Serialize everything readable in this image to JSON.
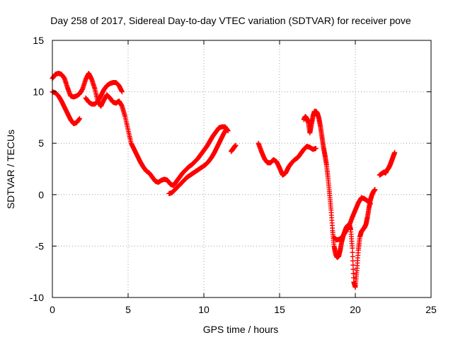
{
  "chart_data": {
    "type": "scatter",
    "title": "Day 258 of 2017, Sidereal Day-to-day VTEC variation (SDTVAR) for receiver pove",
    "xlabel": "GPS time / hours",
    "ylabel": "SDTVAR / TECUs",
    "xlim": [
      0,
      25
    ],
    "ylim": [
      -10,
      15
    ],
    "xticks": [
      "0",
      "5",
      "10",
      "15",
      "20",
      "25"
    ],
    "yticks": [
      "-10",
      "-5",
      "0",
      "5",
      "10",
      "15"
    ],
    "grid": true,
    "legend": "none",
    "marker": "+",
    "color": "#ff0000",
    "series": [
      {
        "x": [
          0.0,
          0.2,
          0.4,
          0.6,
          0.8,
          1.0,
          1.2,
          1.4,
          1.6,
          1.8
        ],
        "y": [
          10.0,
          9.9,
          9.6,
          9.1,
          8.5,
          7.9,
          7.3,
          6.9,
          7.0,
          7.4
        ]
      },
      {
        "x": [
          0.0,
          0.2,
          0.4,
          0.6,
          0.8,
          1.0,
          1.2,
          1.4,
          1.6,
          1.8,
          2.0,
          2.2,
          2.4,
          2.6,
          2.8,
          3.0,
          3.2,
          3.4,
          3.6,
          3.8,
          4.0,
          4.2,
          4.4,
          4.6,
          4.8,
          5.0,
          5.2,
          5.4,
          5.6,
          5.8,
          6.0,
          6.2,
          6.4,
          6.6,
          6.8,
          7.0,
          7.2,
          7.4,
          7.6,
          7.8,
          8.0,
          8.2,
          8.4,
          8.6,
          8.8,
          9.0,
          9.2,
          9.4,
          9.6,
          9.8,
          10.0,
          10.2,
          10.4,
          10.6,
          10.8,
          11.0,
          11.2,
          11.4,
          11.6
        ],
        "y": [
          11.3,
          11.7,
          11.8,
          11.7,
          11.3,
          10.4,
          9.6,
          9.5,
          9.6,
          9.8,
          10.3,
          11.2,
          11.8,
          11.2,
          10.3,
          9.1,
          8.6,
          9.2,
          9.7,
          9.4,
          9.0,
          8.9,
          9.1,
          8.6,
          7.6,
          6.3,
          5.0,
          4.4,
          3.8,
          3.2,
          2.7,
          2.3,
          2.1,
          1.7,
          1.3,
          1.2,
          1.4,
          1.5,
          1.4,
          1.0,
          0.9,
          1.3,
          1.7,
          2.1,
          2.4,
          2.7,
          2.9,
          3.2,
          3.5,
          3.9,
          4.3,
          4.7,
          5.2,
          5.7,
          6.1,
          6.5,
          6.6,
          6.6,
          6.2
        ]
      },
      {
        "x": [
          2.2,
          2.4,
          2.6,
          2.8,
          3.0,
          3.2,
          3.4,
          3.6,
          3.8,
          4.0,
          4.2,
          4.4,
          4.6
        ],
        "y": [
          9.4,
          9.0,
          8.8,
          8.8,
          9.1,
          9.6,
          10.2,
          10.6,
          10.8,
          10.9,
          10.9,
          10.6,
          10.0
        ]
      },
      {
        "x": [
          7.7,
          7.9,
          8.1,
          8.3,
          8.5,
          8.7,
          8.9,
          9.1,
          9.3,
          9.5,
          9.7,
          9.9,
          10.1,
          10.3,
          10.5,
          10.7,
          10.9,
          11.1,
          11.3,
          11.5
        ],
        "y": [
          0.1,
          0.2,
          0.5,
          0.8,
          1.1,
          1.4,
          1.7,
          1.9,
          2.1,
          2.3,
          2.5,
          2.7,
          2.9,
          3.2,
          3.6,
          4.1,
          4.7,
          5.3,
          5.9,
          6.4
        ]
      },
      {
        "x": [
          11.8,
          11.9,
          12.0,
          12.1
        ],
        "y": [
          4.2,
          4.4,
          4.6,
          4.8
        ]
      },
      {
        "x": [
          13.6,
          13.8,
          14.0,
          14.2,
          14.4,
          14.6,
          14.8,
          15.0,
          15.2,
          15.4,
          15.6,
          15.8,
          16.0,
          16.2,
          16.4,
          16.6,
          16.8,
          17.0,
          17.2,
          17.4
        ],
        "y": [
          5.0,
          4.2,
          3.5,
          3.1,
          3.1,
          3.4,
          3.2,
          2.6,
          1.9,
          2.1,
          2.7,
          3.1,
          3.4,
          3.6,
          4.0,
          4.4,
          4.7,
          4.6,
          4.4,
          4.5
        ]
      },
      {
        "x": [
          16.6,
          16.7,
          16.8,
          16.9,
          17.0,
          17.1,
          17.2,
          17.3,
          17.4,
          17.5,
          17.6,
          17.7,
          17.8,
          17.9,
          18.0,
          18.1,
          18.2,
          18.3,
          18.4,
          18.5,
          18.6,
          18.7,
          18.8,
          18.9,
          19.0,
          19.1,
          19.2,
          19.3,
          19.4,
          19.5,
          19.6,
          19.7,
          19.8,
          19.9,
          20.0,
          20.1,
          20.2,
          20.3,
          20.4,
          20.5,
          20.6,
          20.7,
          20.8,
          20.9,
          21.0,
          21.1,
          21.2,
          21.3
        ],
        "y": [
          7.3,
          7.6,
          7.4,
          7.0,
          6.0,
          6.8,
          7.6,
          8.1,
          8.1,
          7.9,
          7.4,
          6.6,
          5.6,
          4.6,
          3.8,
          2.9,
          1.6,
          0.1,
          -1.5,
          -3.5,
          -5.0,
          -5.8,
          -6.1,
          -6.0,
          -5.4,
          -4.6,
          -4.0,
          -3.6,
          -3.2,
          -3.0,
          -2.9,
          -3.4,
          -5.2,
          -8.5,
          -9.0,
          -7.4,
          -5.4,
          -4.1,
          -3.6,
          -3.4,
          -3.2,
          -2.9,
          -2.2,
          -1.3,
          -0.5,
          0.0,
          0.3,
          0.5
        ]
      },
      {
        "x": [
          18.6,
          18.8,
          19.0,
          19.2,
          19.4,
          19.6,
          19.8,
          20.0,
          20.2,
          20.4,
          20.6,
          20.8,
          21.0
        ],
        "y": [
          -4.2,
          -4.4,
          -4.3,
          -4.0,
          -3.5,
          -3.0,
          -2.2,
          -1.5,
          -0.8,
          -0.3,
          -0.4,
          -0.6,
          -0.9
        ]
      },
      {
        "x": [
          21.6,
          21.7,
          21.8,
          21.9,
          22.0,
          22.1,
          22.2,
          22.3,
          22.4,
          22.5,
          22.6
        ],
        "y": [
          1.9,
          2.0,
          2.1,
          2.2,
          2.1,
          2.4,
          2.6,
          2.9,
          3.3,
          3.7,
          4.1
        ]
      }
    ]
  }
}
